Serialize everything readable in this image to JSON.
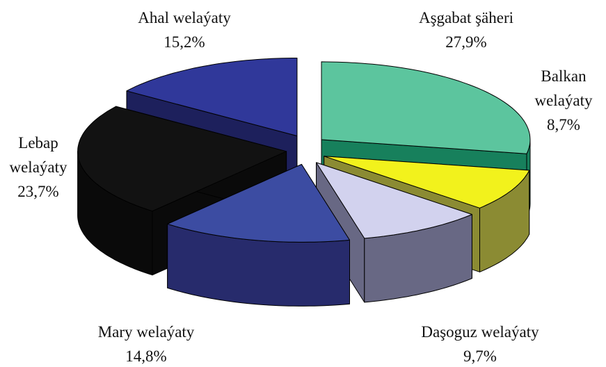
{
  "chart_data": {
    "type": "pie3d",
    "categories": [
      "Aşgabat şäheri",
      "Balkan welaýaty",
      "Daşoguz welaýaty",
      "Mary welaýaty",
      "Lebap welaýaty",
      "Ahal welaýaty"
    ],
    "values": [
      27.9,
      8.7,
      9.7,
      14.8,
      23.7,
      15.2
    ],
    "value_labels": [
      "27,9%",
      "8,7%",
      "9,7%",
      "14,8%",
      "23,7%",
      "15,2%"
    ],
    "colors": [
      "#5cc59e",
      "#f2f21c",
      "#d2d2ee",
      "#3c4ca2",
      "#121212",
      "#30389a"
    ],
    "side_colors": [
      "#17805c",
      "#8b8b33",
      "#686884",
      "#272b6c",
      "#0a0a0a",
      "#1d205c"
    ]
  }
}
